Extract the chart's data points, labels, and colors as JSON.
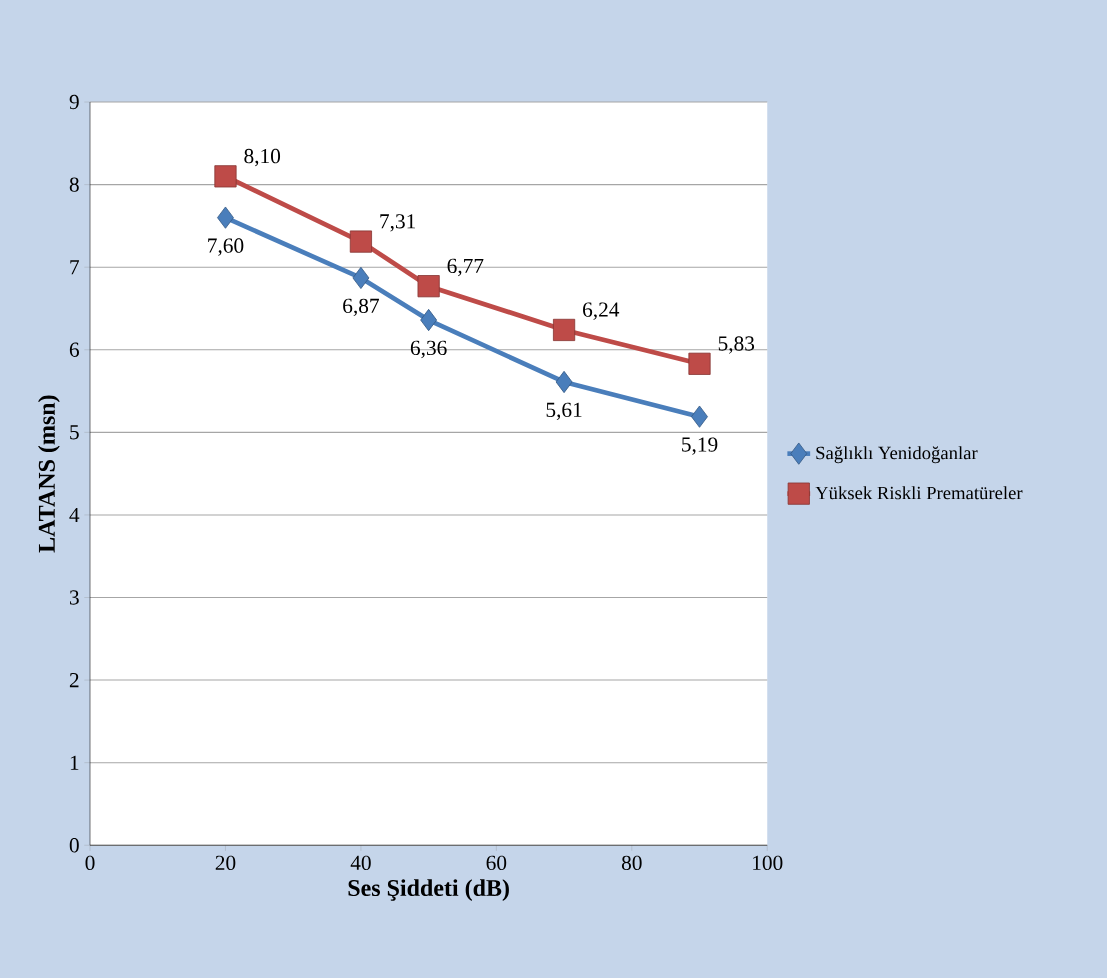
{
  "chart_data": {
    "type": "line",
    "xlabel": "Ses Şiddeti (dB)",
    "ylabel": "LATANS (msn)",
    "x": [
      20,
      40,
      50,
      70,
      90
    ],
    "series": [
      {
        "name": "Sağlıklı Yenidoğanlar",
        "color": "#4a7ebb",
        "marker": "diamond",
        "values": [
          7.6,
          6.87,
          6.36,
          5.61,
          5.19
        ],
        "value_labels": [
          "7,60",
          "6,87",
          "6,36",
          "5,61",
          "5,19"
        ]
      },
      {
        "name": "Yüksek Riskli Prematüreler",
        "color": "#be4b48",
        "marker": "square",
        "values": [
          8.1,
          7.31,
          6.77,
          6.24,
          5.83
        ],
        "value_labels": [
          "8,10",
          "7,31",
          "6,77",
          "6,24",
          "5,83"
        ]
      }
    ],
    "xlim": [
      0,
      100
    ],
    "xticks": [
      0,
      20,
      40,
      60,
      80,
      100
    ],
    "ylim": [
      0,
      9
    ],
    "yticks": [
      0,
      1,
      2,
      3,
      4,
      5,
      6,
      7,
      8,
      9
    ],
    "grid": "y",
    "legend": "right",
    "line_style": "solid"
  }
}
